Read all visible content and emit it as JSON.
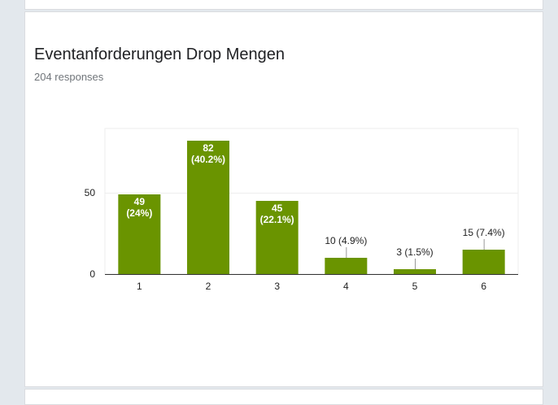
{
  "question": {
    "title": "Eventanforderungen Drop Mengen",
    "responses": "204 responses"
  },
  "colors": {
    "bar": "#6a9400",
    "grid": "#eeeeee",
    "axis": "#333333",
    "label_inside": "#ffffff",
    "label_outside": "#222222"
  },
  "chart_data": {
    "type": "bar",
    "categories": [
      "1",
      "2",
      "3",
      "4",
      "5",
      "6"
    ],
    "values": [
      49,
      82,
      45,
      10,
      3,
      15
    ],
    "data_labels": [
      [
        "49",
        "(24%)"
      ],
      [
        "82",
        "(40.2%)"
      ],
      [
        "45",
        "(22.1%)"
      ],
      [
        "10 (4.9%)"
      ],
      [
        "3 (1.5%)"
      ],
      [
        "15 (7.4%)"
      ]
    ],
    "y_ticks": [
      0,
      50
    ],
    "ylim": [
      0,
      90
    ],
    "grid": true,
    "legend": "none"
  }
}
